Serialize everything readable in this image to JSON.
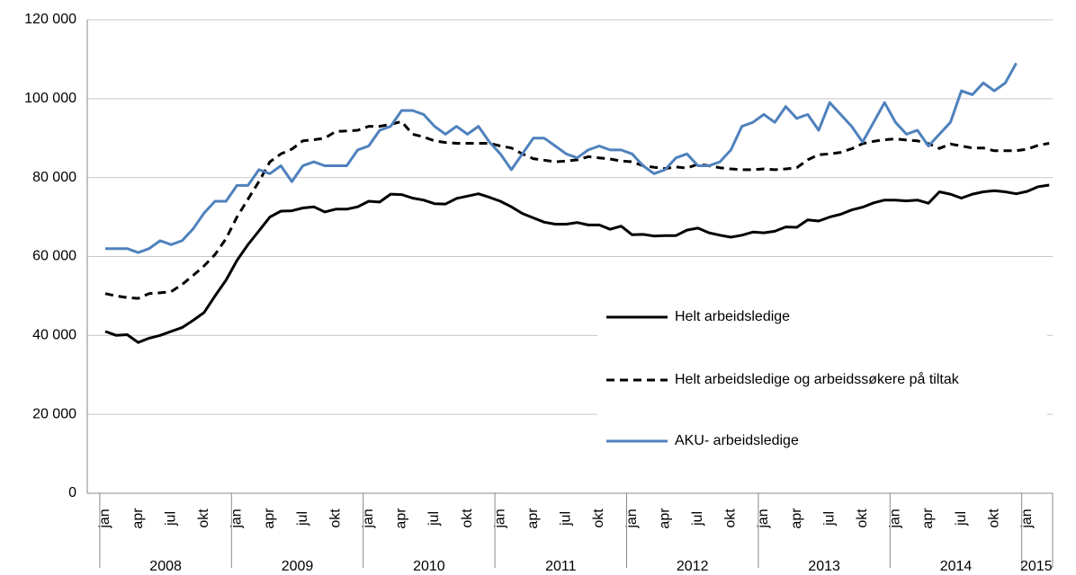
{
  "chart_data": {
    "type": "line",
    "categories": [
      "jan",
      null,
      null,
      "apr",
      null,
      null,
      "jul",
      null,
      null,
      "okt",
      null,
      null,
      "jan",
      null,
      null,
      "apr",
      null,
      null,
      "jul",
      null,
      null,
      "okt",
      null,
      null,
      "jan",
      null,
      null,
      "apr",
      null,
      null,
      "jul",
      null,
      null,
      "okt",
      null,
      null,
      "jan",
      null,
      null,
      "apr",
      null,
      null,
      "jul",
      null,
      null,
      "okt",
      null,
      null,
      "jan",
      null,
      null,
      "apr",
      null,
      null,
      "jul",
      null,
      null,
      "okt",
      null,
      null,
      "jan",
      null,
      null,
      "apr",
      null,
      null,
      "jul",
      null,
      null,
      "okt",
      null,
      null,
      "jan",
      null,
      null,
      "apr",
      null,
      null,
      "jul",
      null,
      null,
      "okt",
      null,
      null,
      "jan",
      null,
      null
    ],
    "years": [
      "2008",
      "2009",
      "2010",
      "2011",
      "2012",
      "2013",
      "2014",
      "2015"
    ],
    "series": [
      {
        "name": "Helt arbeidsledige",
        "color": "#000000",
        "dash": false,
        "values": [
          41000,
          40000,
          40200,
          38200,
          39300,
          40000,
          41000,
          42000,
          43800,
          45800,
          50000,
          54000,
          59000,
          63000,
          66500,
          70000,
          71500,
          71600,
          72300,
          72600,
          71300,
          72000,
          72000,
          72600,
          74000,
          73800,
          75800,
          75700,
          74800,
          74300,
          73400,
          73300,
          74700,
          75300,
          75900,
          75000,
          74000,
          72600,
          70900,
          69800,
          68700,
          68200,
          68200,
          68600,
          68000,
          68000,
          66900,
          67700,
          65500,
          65600,
          65200,
          65300,
          65300,
          66700,
          67200,
          66000,
          65400,
          64900,
          65400,
          66200,
          66000,
          66400,
          67500,
          67400,
          69300,
          69000,
          70000,
          70700,
          71800,
          72500,
          73600,
          74300,
          74300,
          74100,
          74300,
          73500,
          76400,
          75800,
          74800,
          75800,
          76400,
          76700,
          76400,
          75900,
          76500,
          77700,
          78100
        ]
      },
      {
        "name": "Helt arbeidsledige og arbeidssøkere på tiltak",
        "color": "#000000",
        "dash": true,
        "values": [
          50600,
          50000,
          49600,
          49400,
          50600,
          50800,
          51100,
          52900,
          55200,
          57600,
          60500,
          64500,
          70000,
          74500,
          79000,
          84000,
          86000,
          87200,
          89300,
          89600,
          90000,
          91700,
          91800,
          92000,
          93000,
          93000,
          93500,
          94200,
          91000,
          90300,
          89300,
          88900,
          88700,
          88700,
          88700,
          88700,
          88000,
          87500,
          86000,
          84800,
          84400,
          84000,
          84200,
          84500,
          85300,
          85000,
          84700,
          84200,
          84000,
          83000,
          82600,
          82300,
          82700,
          82400,
          83400,
          83000,
          82500,
          82200,
          82000,
          82000,
          82200,
          82000,
          82200,
          82500,
          84500,
          85800,
          86000,
          86400,
          87300,
          88600,
          89200,
          89600,
          89800,
          89500,
          89300,
          88600,
          87400,
          88500,
          88000,
          87500,
          87500,
          86800,
          86800,
          86800,
          87200,
          88200,
          88700
        ]
      },
      {
        "name": "AKU- arbeidsledige",
        "color": "#4f81bd",
        "dash": false,
        "values": [
          62000,
          62000,
          62000,
          61000,
          62000,
          64000,
          63000,
          64000,
          67000,
          71000,
          74000,
          74000,
          78000,
          78000,
          82000,
          81000,
          83000,
          79000,
          83000,
          84000,
          83000,
          83000,
          83000,
          87000,
          88000,
          92000,
          93000,
          97000,
          97000,
          96000,
          93000,
          91000,
          93000,
          91000,
          93000,
          89000,
          86000,
          82000,
          86000,
          90000,
          90000,
          88000,
          86000,
          85000,
          87000,
          88000,
          87000,
          87000,
          86000,
          83000,
          81000,
          82000,
          85000,
          86000,
          83000,
          83000,
          84000,
          87000,
          93000,
          94000,
          96000,
          94000,
          98000,
          95000,
          96000,
          92000,
          99000,
          96000,
          93000,
          89000,
          94000,
          99000,
          94000,
          91000,
          92000,
          88000,
          91000,
          94000,
          102000,
          101000,
          104000,
          102000,
          104000,
          109000,
          null,
          null,
          null
        ]
      }
    ],
    "ylim": [
      0,
      120000
    ],
    "yticks": [
      0,
      {
        "value": 20000,
        "label": "20 000"
      },
      {
        "value": 40000,
        "label": "40 000"
      },
      {
        "value": 60000,
        "label": "60 000"
      },
      {
        "value": 80000,
        "label": "80 000"
      },
      {
        "value": 100000,
        "label": "100 000"
      },
      {
        "value": 120000,
        "label": "120 000"
      }
    ],
    "grid": true
  }
}
